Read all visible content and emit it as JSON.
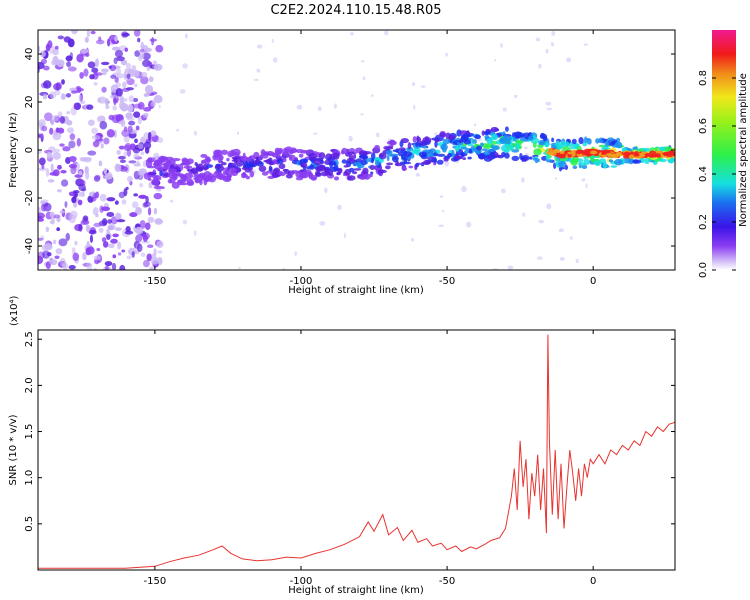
{
  "title": "C2E2.2024.110.15.48.R05",
  "colors": {
    "snr_line": "#e8332f",
    "axis": "#000000",
    "colormap": [
      "#ffffff",
      "#cbb8f5",
      "#8a3df2",
      "#5a1fe0",
      "#1f2ef0",
      "#1a8ff0",
      "#16e0e0",
      "#2cf04a",
      "#e8f020",
      "#f0a020",
      "#f02020",
      "#f01a80"
    ]
  },
  "chart_data": [
    {
      "type": "heatmap",
      "xlabel": "Height of straight line (km)",
      "ylabel": "Frequency (Hz)",
      "xlim": [
        -190,
        28
      ],
      "ylim": [
        -50,
        50
      ],
      "xticks": [
        -150,
        -100,
        -50,
        0
      ],
      "xtick_labels": [
        "-150",
        "-100",
        "-50",
        "0"
      ],
      "yticks": [
        -40,
        -20,
        0,
        20,
        40
      ],
      "ytick_labels": [
        "-40",
        "-20",
        "0",
        "20",
        "40"
      ],
      "colorbar": {
        "label": "Normalized spectral amplitude",
        "range": [
          0,
          1
        ],
        "ticks": [
          0.0,
          0.2,
          0.4,
          0.6,
          0.8
        ],
        "tick_labels": [
          "0.0",
          "0.2",
          "0.4",
          "0.6",
          "0.8"
        ]
      },
      "ridge": {
        "x": [
          -150,
          -140,
          -130,
          -120,
          -110,
          -100,
          -90,
          -80,
          -70,
          -60,
          -50,
          -40,
          -30,
          -20,
          -10,
          0,
          10,
          20,
          28
        ],
        "y": [
          -10,
          -9,
          -7,
          -6,
          -6,
          -6,
          -6,
          -6,
          -3,
          -1,
          1,
          2,
          3,
          1,
          -2,
          -1,
          -2,
          -2,
          -2
        ]
      }
    },
    {
      "type": "line",
      "xlabel": "Height of straight line (km)",
      "ylabel": "SNR (10 * v/v)",
      "scale_label": "(x10⁴)",
      "xlim": [
        -190,
        28
      ],
      "ylim": [
        0,
        26000
      ],
      "xticks": [
        -150,
        -100,
        -50,
        0
      ],
      "xtick_labels": [
        "-150",
        "-100",
        "-50",
        "0"
      ],
      "yticks": [
        5000,
        10000,
        15000,
        20000,
        25000
      ],
      "ytick_labels": [
        "0.5",
        "1.0",
        "1.5",
        "2.0",
        "2.5"
      ],
      "series": [
        {
          "x": [
            -190,
            -175,
            -160,
            -150,
            -145,
            -140,
            -135,
            -130,
            -127,
            -124,
            -120,
            -115,
            -110,
            -105,
            -100,
            -95,
            -90,
            -85,
            -80,
            -77,
            -75,
            -72,
            -70,
            -67,
            -65,
            -62,
            -60,
            -57,
            -55,
            -52,
            -50,
            -47,
            -45,
            -42,
            -40,
            -37,
            -35,
            -32,
            -30,
            -28,
            -27,
            -26,
            -25,
            -24,
            -23,
            -22,
            -21,
            -20,
            -19,
            -18,
            -17,
            -16,
            -15.5,
            -15,
            -14,
            -13,
            -12,
            -11,
            -10,
            -9,
            -8,
            -7,
            -6,
            -5,
            -4,
            -3,
            -2,
            -1,
            0,
            2,
            4,
            6,
            8,
            10,
            12,
            14,
            16,
            18,
            20,
            22,
            24,
            26,
            28
          ],
          "y": [
            200,
            200,
            200,
            400,
            900,
            1300,
            1600,
            2200,
            2600,
            1800,
            1200,
            1000,
            1100,
            1400,
            1300,
            1800,
            2200,
            2800,
            3600,
            5200,
            4200,
            6000,
            3800,
            4600,
            3200,
            4300,
            3000,
            3400,
            2600,
            2900,
            2200,
            2600,
            2000,
            2500,
            2300,
            2800,
            3200,
            3500,
            4500,
            8000,
            11000,
            6500,
            14000,
            9000,
            12000,
            5500,
            10500,
            8000,
            12500,
            6500,
            11000,
            4000,
            25500,
            14000,
            6000,
            13000,
            5500,
            11500,
            4500,
            9000,
            13000,
            10500,
            7500,
            11000,
            8000,
            11500,
            10000,
            12000,
            11500,
            12500,
            11500,
            13000,
            12500,
            13500,
            13000,
            14000,
            13500,
            15000,
            14500,
            15500,
            15000,
            15800,
            16000
          ]
        }
      ]
    }
  ]
}
